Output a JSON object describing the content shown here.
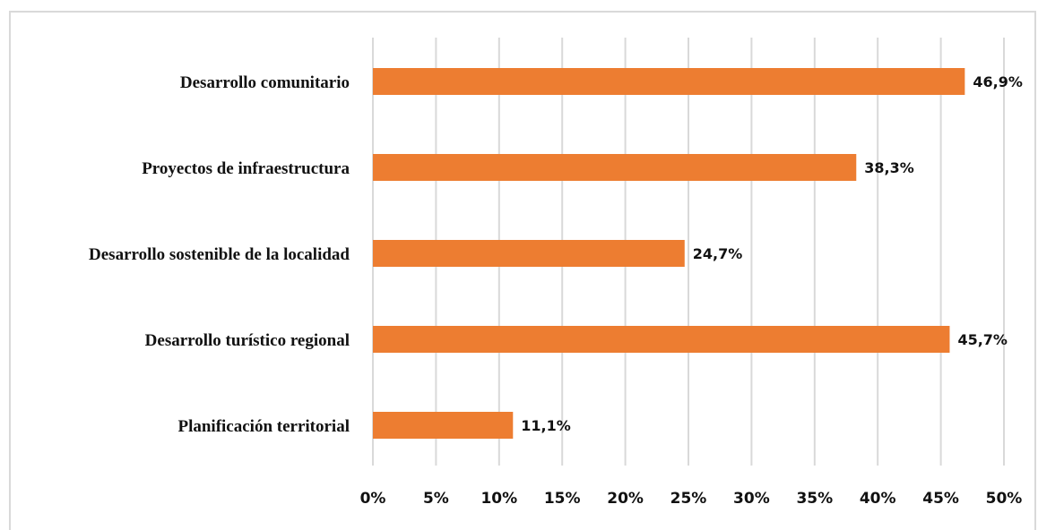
{
  "chart_data": {
    "type": "bar",
    "orientation": "horizontal",
    "categories": [
      "Desarrollo comunitario",
      "Proyectos de infraestructura",
      "Desarrollo sostenible de la localidad",
      "Desarrollo turístico regional",
      "Planificación territorial"
    ],
    "values": [
      46.9,
      38.3,
      24.7,
      45.7,
      11.1
    ],
    "value_labels": [
      "46,9%",
      "38,3%",
      "24,7%",
      "45,7%",
      "11,1%"
    ],
    "xlim": [
      0,
      50
    ],
    "xticks": [
      0,
      5,
      10,
      15,
      20,
      25,
      30,
      35,
      40,
      45,
      50
    ],
    "xtick_labels": [
      "0%",
      "5%",
      "10%",
      "15%",
      "20%",
      "25%",
      "30%",
      "35%",
      "40%",
      "45%",
      "50%"
    ],
    "grid": "vertical",
    "bar_color": "#ED7D31",
    "gridline_color": "#d9d9d9"
  }
}
